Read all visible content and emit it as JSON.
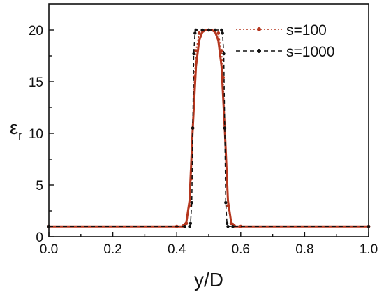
{
  "chart_data": {
    "type": "line",
    "xlabel": "y/D",
    "ylabel_main": "ε",
    "ylabel_sub": "r",
    "xlim": [
      0.0,
      1.0
    ],
    "ylim": [
      0,
      22.5
    ],
    "xticks": [
      "0.0",
      "0.2",
      "0.4",
      "0.6",
      "0.8",
      "1.0"
    ],
    "xtick_values": [
      0.0,
      0.2,
      0.4,
      0.6,
      0.8,
      1.0
    ],
    "yticks": [
      "0",
      "5",
      "10",
      "15",
      "20"
    ],
    "ytick_values": [
      0,
      5,
      10,
      15,
      20
    ],
    "grid": false,
    "legend_position": "top-right",
    "series": [
      {
        "name": "s=100",
        "color": "#b5371f",
        "style": "dotted-line-with-markers",
        "x": [
          0.0,
          0.4,
          0.42,
          0.43,
          0.44,
          0.445,
          0.45,
          0.455,
          0.46,
          0.47,
          0.48,
          0.5,
          0.52,
          0.53,
          0.54,
          0.545,
          0.55,
          0.555,
          0.56,
          0.57,
          0.58,
          0.6,
          1.0
        ],
        "y": [
          1,
          1,
          1.05,
          1.3,
          3.0,
          5.6,
          10.5,
          15.4,
          18.0,
          19.7,
          19.95,
          20,
          19.95,
          19.7,
          18.0,
          15.4,
          10.5,
          5.6,
          3.0,
          1.3,
          1.05,
          1,
          1
        ]
      },
      {
        "name": "s=1000",
        "color": "#111111",
        "style": "dashed-line-with-markers",
        "x": [
          0.0,
          0.425,
          0.44,
          0.443,
          0.447,
          0.45,
          0.453,
          0.457,
          0.46,
          0.48,
          0.5,
          0.52,
          0.54,
          0.543,
          0.547,
          0.55,
          0.553,
          0.557,
          0.56,
          0.575,
          1.0
        ],
        "y": [
          1,
          1,
          1,
          1.3,
          3.3,
          10.5,
          17.7,
          19.7,
          20,
          20,
          20,
          20,
          20,
          19.7,
          17.7,
          10.5,
          3.3,
          1.3,
          1,
          1,
          1
        ]
      },
      {
        "name": "",
        "color": "#b5371f",
        "style": "solid-smooth",
        "x": [
          0.0,
          0.42,
          0.43,
          0.44,
          0.45,
          0.46,
          0.47,
          0.48,
          0.49,
          0.5,
          0.51,
          0.52,
          0.53,
          0.54,
          0.55,
          0.56,
          0.57,
          0.58,
          1.0
        ],
        "y": [
          1,
          1,
          1.4,
          3.5,
          10.5,
          16.5,
          19.0,
          19.8,
          20,
          20,
          20,
          19.8,
          19.0,
          16.5,
          10.5,
          3.5,
          1.4,
          1,
          1
        ]
      }
    ]
  }
}
